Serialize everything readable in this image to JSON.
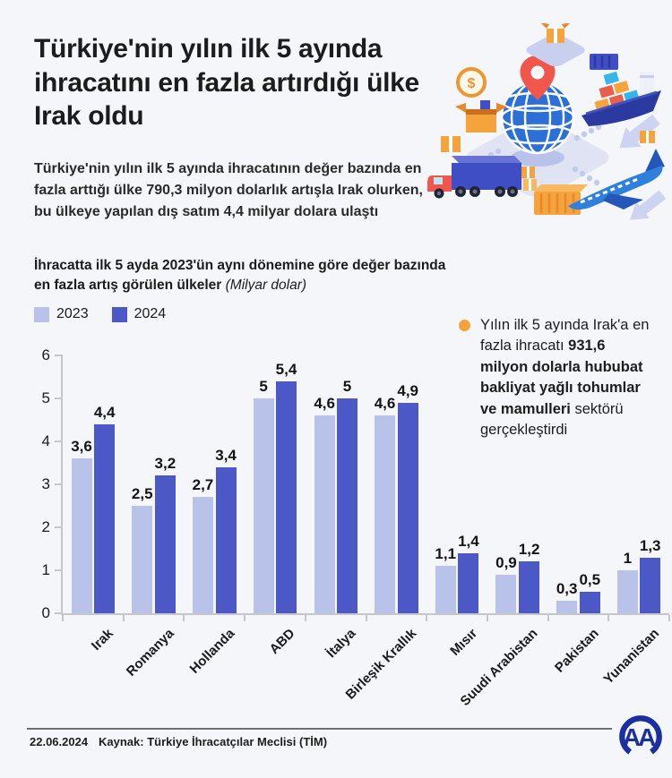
{
  "header": {
    "title": "Türkiye'nin yılın ilk 5 ayında ihracatını en fazla artırdığı ülke Irak oldu",
    "subtitle": "Türkiye'nin yılın ilk 5 ayında ihracatının değer bazında en fazla arttığı ülke 790,3 milyon dolarlık artışla Irak olurken, bu ülkeye yapılan dış satım 4,4 milyar dolara ulaştı"
  },
  "chart_header": {
    "title": "İhracatta ilk 5 ayda 2023'ün aynı dönemine göre değer bazında en fazla artış görülen ülkeler ",
    "unit": "(Milyar dolar)"
  },
  "legend": [
    {
      "label": "2023",
      "color": "#b9c3ea"
    },
    {
      "label": "2024",
      "color": "#4c58c5"
    }
  ],
  "chart_data": {
    "type": "bar",
    "title": "İhracatta ilk 5 ayda 2023'ün aynı dönemine göre değer bazında en fazla artış görülen ülkeler",
    "unit": "Milyar dolar",
    "categories": [
      "Irak",
      "Romanya",
      "Hollanda",
      "ABD",
      "İtalya",
      "Birleşik Krallık",
      "Mısır",
      "Suudi Arabistan",
      "Pakistan",
      "Yunanistan"
    ],
    "series": [
      {
        "name": "2023",
        "color": "#b9c3ea",
        "values": [
          3.6,
          2.5,
          2.7,
          5,
          4.6,
          4.6,
          1.1,
          0.9,
          0.3,
          1
        ]
      },
      {
        "name": "2024",
        "color": "#4c58c5",
        "values": [
          4.4,
          3.2,
          3.4,
          5.4,
          5,
          4.9,
          1.4,
          1.2,
          0.5,
          1.3
        ]
      }
    ],
    "value_labels": [
      [
        "3,6",
        "2,5",
        "2,7",
        "5",
        "4,6",
        "4,6",
        "1,1",
        "0,9",
        "0,3",
        "1"
      ],
      [
        "4,4",
        "3,2",
        "3,4",
        "5,4",
        "5",
        "4,9",
        "1,4",
        "1,2",
        "0,5",
        "1,3"
      ]
    ],
    "ylim": [
      0,
      6
    ],
    "yticks": [
      0,
      1,
      2,
      3,
      4,
      5,
      6
    ],
    "grid": false,
    "legend_position": "top-left",
    "xlabel": "",
    "ylabel": ""
  },
  "note": {
    "bullet_color": "#f6a23b",
    "text_before": "Yılın ilk 5 ayında Irak'a en fazla ihracatı ",
    "text_bold": "931,6 milyon dolarla hububat bakliyat yağlı tohumlar ve mamulleri",
    "text_after": " sektörü gerçekleştirdi"
  },
  "footer": {
    "date": "22.06.2024",
    "source": "Kaynak: Türkiye İhracatçılar Meclisi (TİM)"
  },
  "illustration": {
    "icons": [
      "globe-icon",
      "location-pin-icon",
      "cargo-ship-icon",
      "airplane-icon",
      "truck-icon",
      "package-icon",
      "open-box-icon",
      "coin-icon",
      "container-icon",
      "arrow-icon",
      "platform-icon"
    ],
    "colors": {
      "navy": "#2b3aa0",
      "indigo": "#3f4ec4",
      "blue": "#2f80dd",
      "globe_blue": "#2d6fd9",
      "orange": "#f5a33c",
      "dark_orange": "#e8872c",
      "red": "#f0564c",
      "lavender": "#dfe3f4",
      "light_arrow": "#ccd4f1"
    },
    "aa_logo_color": "#1b2f9e"
  }
}
